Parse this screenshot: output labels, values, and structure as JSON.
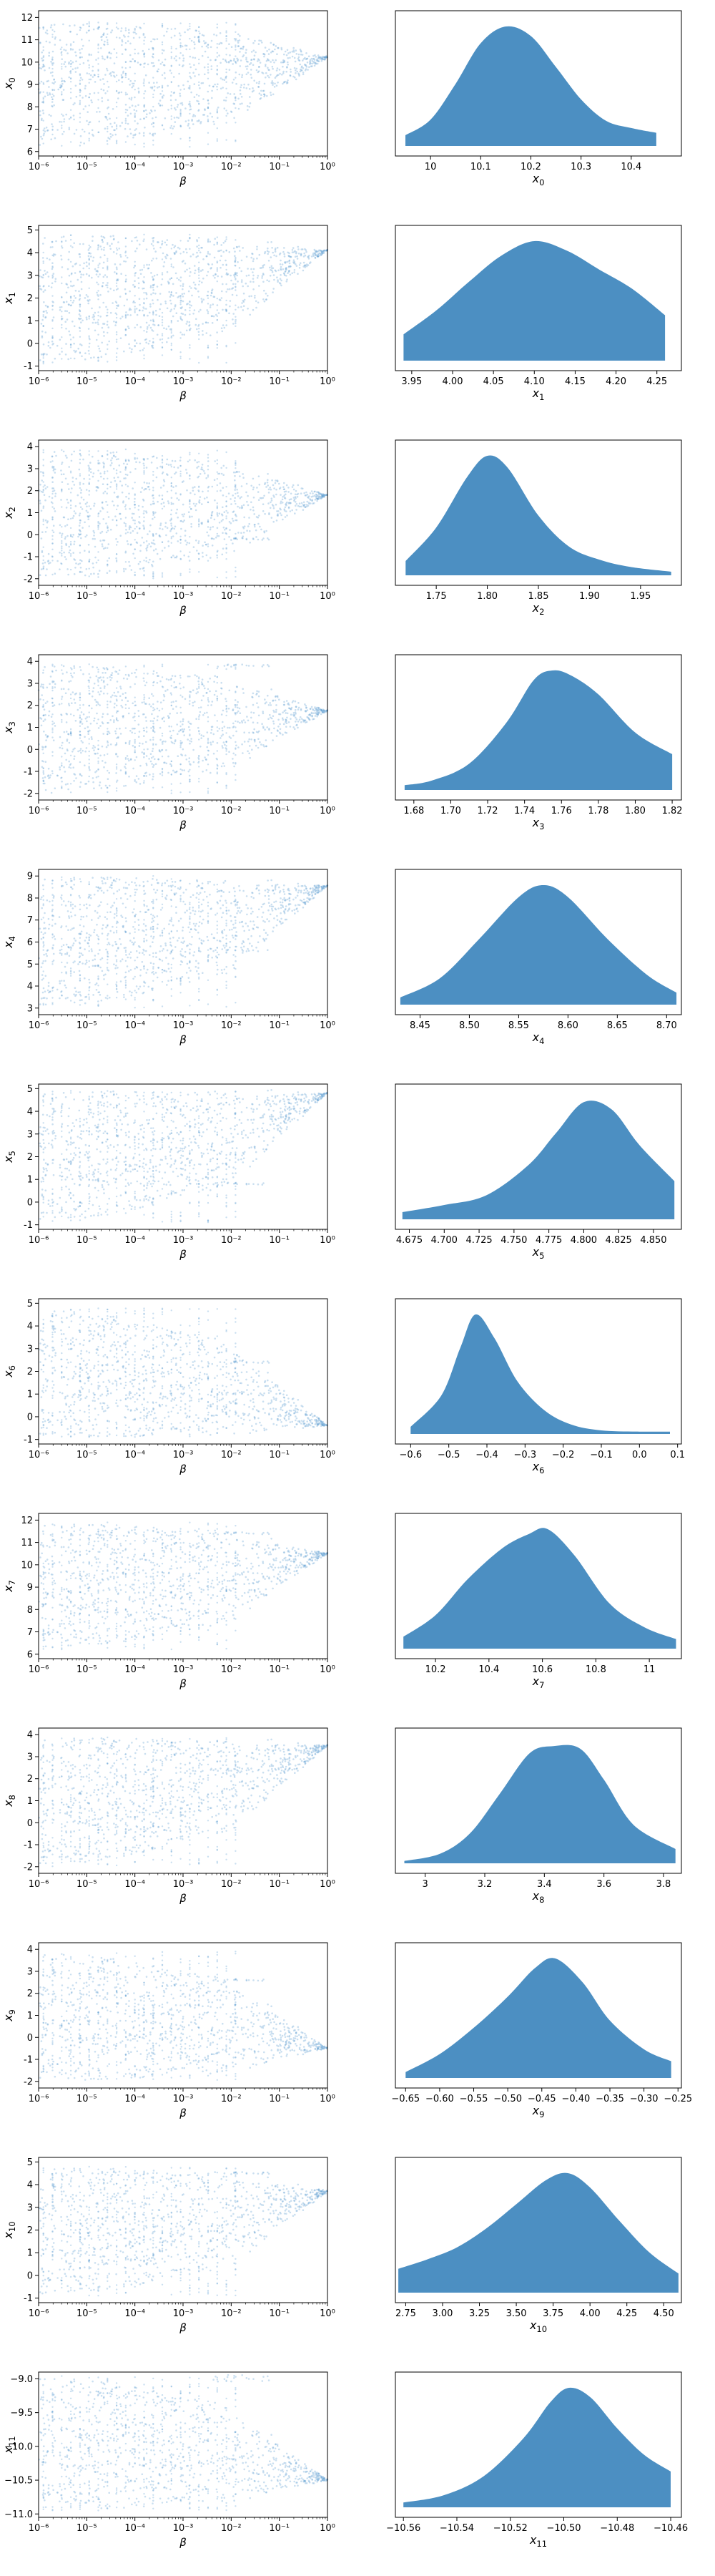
{
  "colors": {
    "fill": "#4c8fc2",
    "points": "#5a9bd0",
    "axes": "#000000"
  },
  "chart_data": [
    {
      "type": "scatter",
      "xlabel": "β",
      "ylabel": "x_0",
      "xscale": "log",
      "xlim": [
        1e-06,
        1
      ],
      "ylim": [
        5.8,
        12.3
      ],
      "yticks": [
        6,
        7,
        8,
        9,
        10,
        11,
        12
      ],
      "xticks": [
        1e-06,
        1e-05,
        0.0001,
        0.001,
        0.01,
        0.1,
        1
      ],
      "xtick_labels": [
        "10⁻⁶",
        "10⁻⁵",
        "10⁻⁴",
        "10⁻³",
        "10⁻²",
        "10⁻¹",
        "10⁰"
      ],
      "range": [
        6.2,
        11.8
      ],
      "final": 10.2,
      "streaks": [
        10.1
      ],
      "noise": 0.25,
      "grid": false
    },
    {
      "type": "area",
      "xlabel": "x_0",
      "xlim": [
        9.93,
        10.5
      ],
      "xticks": [
        10.0,
        10.1,
        10.2,
        10.3,
        10.4
      ],
      "x": [
        9.95,
        10.0,
        10.05,
        10.1,
        10.15,
        10.2,
        10.25,
        10.3,
        10.35,
        10.4,
        10.45
      ],
      "values": [
        0.09,
        0.22,
        0.52,
        0.86,
        1.0,
        0.92,
        0.66,
        0.39,
        0.21,
        0.15,
        0.11
      ],
      "grid": false
    },
    {
      "type": "scatter",
      "xlabel": "β",
      "ylabel": "x_1",
      "xscale": "log",
      "xlim": [
        1e-06,
        1
      ],
      "ylim": [
        -1.2,
        5.2
      ],
      "yticks": [
        -1,
        0,
        1,
        2,
        3,
        4,
        5
      ],
      "xticks": [
        1e-06,
        1e-05,
        0.0001,
        0.001,
        0.01,
        0.1,
        1
      ],
      "xtick_labels": [
        "10⁻⁶",
        "10⁻⁵",
        "10⁻⁴",
        "10⁻³",
        "10⁻²",
        "10⁻¹",
        "10⁰"
      ],
      "range": [
        -0.9,
        4.8
      ],
      "final": 4.1,
      "streaks": [
        3.0
      ],
      "noise": 0.2,
      "grid": false
    },
    {
      "type": "area",
      "xlabel": "x_1",
      "xlim": [
        3.93,
        4.28
      ],
      "xticks": [
        3.95,
        4.0,
        4.05,
        4.1,
        4.15,
        4.2,
        4.25
      ],
      "xtick_labels": [
        "3.95",
        "4.00",
        "4.05",
        "4.10",
        "4.15",
        "4.20",
        "4.25"
      ],
      "x": [
        3.94,
        3.98,
        4.02,
        4.06,
        4.1,
        4.14,
        4.18,
        4.22,
        4.26
      ],
      "values": [
        0.22,
        0.42,
        0.66,
        0.88,
        1.0,
        0.92,
        0.76,
        0.6,
        0.38
      ],
      "grid": false
    },
    {
      "type": "scatter",
      "xlabel": "β",
      "ylabel": "x_2",
      "xscale": "log",
      "xlim": [
        1e-06,
        1
      ],
      "ylim": [
        -2.3,
        4.3
      ],
      "yticks": [
        -2,
        -1,
        0,
        1,
        2,
        3,
        4
      ],
      "xticks": [
        1e-06,
        1e-05,
        0.0001,
        0.001,
        0.01,
        0.1,
        1
      ],
      "xtick_labels": [
        "10⁻⁶",
        "10⁻⁵",
        "10⁻⁴",
        "10⁻³",
        "10⁻²",
        "10⁻¹",
        "10⁰"
      ],
      "range": [
        -2.0,
        3.9
      ],
      "final": 1.8,
      "streaks": [
        -0.2
      ],
      "noise": 0.2,
      "grid": false
    },
    {
      "type": "area",
      "xlabel": "x_2",
      "xlim": [
        1.71,
        1.99
      ],
      "xticks": [
        1.75,
        1.8,
        1.85,
        1.9,
        1.95
      ],
      "xtick_labels": [
        "1.75",
        "1.80",
        "1.85",
        "1.90",
        "1.95"
      ],
      "x": [
        1.72,
        1.75,
        1.78,
        1.8,
        1.82,
        1.85,
        1.88,
        1.91,
        1.94,
        1.98
      ],
      "values": [
        0.12,
        0.4,
        0.82,
        1.0,
        0.9,
        0.5,
        0.24,
        0.13,
        0.07,
        0.03
      ],
      "grid": false
    },
    {
      "type": "scatter",
      "xlabel": "β",
      "ylabel": "x_3",
      "xscale": "log",
      "xlim": [
        1e-06,
        1
      ],
      "ylim": [
        -2.3,
        4.3
      ],
      "yticks": [
        -2,
        -1,
        0,
        1,
        2,
        3,
        4
      ],
      "xticks": [
        1e-06,
        1e-05,
        0.0001,
        0.001,
        0.01,
        0.1,
        1
      ],
      "xtick_labels": [
        "10⁻⁶",
        "10⁻⁵",
        "10⁻⁴",
        "10⁻³",
        "10⁻²",
        "10⁻¹",
        "10⁰"
      ],
      "range": [
        -2.0,
        3.9
      ],
      "final": 1.75,
      "streaks": [
        3.8
      ],
      "noise": 0.25,
      "grid": false
    },
    {
      "type": "area",
      "xlabel": "x_3",
      "xlim": [
        1.67,
        1.825
      ],
      "xticks": [
        1.68,
        1.7,
        1.72,
        1.74,
        1.76,
        1.78,
        1.8,
        1.82
      ],
      "xtick_labels": [
        "1.68",
        "1.70",
        "1.72",
        "1.74",
        "1.76",
        "1.78",
        "1.80",
        "1.82"
      ],
      "x": [
        1.675,
        1.69,
        1.71,
        1.73,
        1.745,
        1.755,
        1.765,
        1.78,
        1.8,
        1.82
      ],
      "values": [
        0.04,
        0.08,
        0.22,
        0.56,
        0.92,
        1.0,
        0.96,
        0.8,
        0.48,
        0.3
      ],
      "grid": false
    },
    {
      "type": "scatter",
      "xlabel": "β",
      "ylabel": "x_4",
      "xscale": "log",
      "xlim": [
        1e-06,
        1
      ],
      "ylim": [
        2.7,
        9.3
      ],
      "yticks": [
        3,
        4,
        5,
        6,
        7,
        8,
        9
      ],
      "xticks": [
        1e-06,
        1e-05,
        0.0001,
        0.001,
        0.01,
        0.1,
        1
      ],
      "xtick_labels": [
        "10⁻⁶",
        "10⁻⁵",
        "10⁻⁴",
        "10⁻³",
        "10⁻²",
        "10⁻¹",
        "10⁰"
      ],
      "range": [
        3.0,
        9.0
      ],
      "final": 8.55,
      "streaks": [
        7.8,
        5.6
      ],
      "noise": 0.2,
      "grid": false
    },
    {
      "type": "area",
      "xlabel": "x_4",
      "xlim": [
        8.425,
        8.715
      ],
      "xticks": [
        8.45,
        8.5,
        8.55,
        8.6,
        8.65,
        8.7
      ],
      "xtick_labels": [
        "8.45",
        "8.50",
        "8.55",
        "8.60",
        "8.65",
        "8.70"
      ],
      "x": [
        8.43,
        8.47,
        8.51,
        8.55,
        8.575,
        8.6,
        8.64,
        8.68,
        8.71
      ],
      "values": [
        0.06,
        0.22,
        0.55,
        0.9,
        1.0,
        0.9,
        0.55,
        0.25,
        0.1
      ],
      "grid": false
    },
    {
      "type": "scatter",
      "xlabel": "β",
      "ylabel": "x_5",
      "xscale": "log",
      "xlim": [
        1e-06,
        1
      ],
      "ylim": [
        -1.2,
        5.2
      ],
      "yticks": [
        -1,
        0,
        1,
        2,
        3,
        4,
        5
      ],
      "xticks": [
        1e-06,
        1e-05,
        0.0001,
        0.001,
        0.01,
        0.1,
        1
      ],
      "xtick_labels": [
        "10⁻⁶",
        "10⁻⁵",
        "10⁻⁴",
        "10⁻³",
        "10⁻²",
        "10⁻¹",
        "10⁰"
      ],
      "range": [
        -0.9,
        4.9
      ],
      "final": 4.8,
      "streaks": [
        0.8
      ],
      "noise": 0.25,
      "grid": false
    },
    {
      "type": "area",
      "xlabel": "x_5",
      "xlim": [
        4.665,
        4.87
      ],
      "xticks": [
        4.675,
        4.7,
        4.725,
        4.75,
        4.775,
        4.8,
        4.825,
        4.85
      ],
      "xtick_labels": [
        "4.675",
        "4.700",
        "4.725",
        "4.750",
        "4.775",
        "4.800",
        "4.825",
        "4.850"
      ],
      "x": [
        4.67,
        4.7,
        4.73,
        4.76,
        4.78,
        4.8,
        4.82,
        4.84,
        4.865
      ],
      "values": [
        0.06,
        0.12,
        0.2,
        0.45,
        0.72,
        0.98,
        0.92,
        0.62,
        0.32
      ],
      "grid": false
    },
    {
      "type": "scatter",
      "xlabel": "β",
      "ylabel": "x_6",
      "xscale": "log",
      "xlim": [
        1e-06,
        1
      ],
      "ylim": [
        -1.2,
        5.2
      ],
      "yticks": [
        -1,
        0,
        1,
        2,
        3,
        4,
        5
      ],
      "xticks": [
        1e-06,
        1e-05,
        0.0001,
        0.001,
        0.01,
        0.1,
        1
      ],
      "xtick_labels": [
        "10⁻⁶",
        "10⁻⁵",
        "10⁻⁴",
        "10⁻³",
        "10⁻²",
        "10⁻¹",
        "10⁰"
      ],
      "range": [
        -0.9,
        4.8
      ],
      "final": -0.4,
      "streaks": [
        2.4
      ],
      "noise": 0.3,
      "grid": false
    },
    {
      "type": "area",
      "xlabel": "x_6",
      "xlim": [
        -0.64,
        0.11
      ],
      "xticks": [
        -0.6,
        -0.5,
        -0.4,
        -0.3,
        -0.2,
        -0.1,
        0.0,
        0.1
      ],
      "xtick_labels": [
        "−0.6",
        "−0.5",
        "−0.4",
        "−0.3",
        "−0.2",
        "−0.1",
        "0.0",
        "0.1"
      ],
      "x": [
        -0.6,
        -0.52,
        -0.47,
        -0.43,
        -0.38,
        -0.32,
        -0.25,
        -0.18,
        -0.1,
        0.0,
        0.08
      ],
      "values": [
        0.06,
        0.32,
        0.72,
        1.0,
        0.8,
        0.44,
        0.2,
        0.08,
        0.03,
        0.02,
        0.02
      ],
      "grid": false
    },
    {
      "type": "scatter",
      "xlabel": "β",
      "ylabel": "x_7",
      "xscale": "log",
      "xlim": [
        1e-06,
        1
      ],
      "ylim": [
        5.8,
        12.3
      ],
      "yticks": [
        6,
        7,
        8,
        9,
        10,
        11,
        12
      ],
      "xticks": [
        1e-06,
        1e-05,
        0.0001,
        0.001,
        0.01,
        0.1,
        1
      ],
      "xtick_labels": [
        "10⁻⁶",
        "10⁻⁵",
        "10⁻⁴",
        "10⁻³",
        "10⁻²",
        "10⁻¹",
        "10⁰"
      ],
      "range": [
        6.2,
        11.9
      ],
      "final": 10.5,
      "streaks": [
        11.4
      ],
      "noise": 0.25,
      "grid": false
    },
    {
      "type": "area",
      "xlabel": "x_7",
      "xlim": [
        10.05,
        11.12
      ],
      "xticks": [
        10.2,
        10.4,
        10.6,
        10.8,
        11.0
      ],
      "x": [
        10.08,
        10.2,
        10.32,
        10.45,
        10.55,
        10.62,
        10.72,
        10.85,
        10.98,
        11.1
      ],
      "values": [
        0.1,
        0.28,
        0.58,
        0.84,
        0.96,
        1.0,
        0.78,
        0.38,
        0.18,
        0.08
      ],
      "grid": false
    },
    {
      "type": "scatter",
      "xlabel": "β",
      "ylabel": "x_8",
      "xscale": "log",
      "xlim": [
        1e-06,
        1
      ],
      "ylim": [
        -2.3,
        4.3
      ],
      "yticks": [
        -2,
        -1,
        0,
        1,
        2,
        3,
        4
      ],
      "xticks": [
        1e-06,
        1e-05,
        0.0001,
        0.001,
        0.01,
        0.1,
        1
      ],
      "xtick_labels": [
        "10⁻⁶",
        "10⁻⁵",
        "10⁻⁴",
        "10⁻³",
        "10⁻²",
        "10⁻¹",
        "10⁰"
      ],
      "range": [
        -2.0,
        3.9
      ],
      "final": 3.5,
      "streaks": [
        2.4
      ],
      "noise": 0.3,
      "grid": false
    },
    {
      "type": "area",
      "xlabel": "x_8",
      "xlim": [
        2.9,
        3.86
      ],
      "xticks": [
        3.0,
        3.2,
        3.4,
        3.6,
        3.8
      ],
      "x": [
        2.93,
        3.05,
        3.15,
        3.25,
        3.35,
        3.43,
        3.52,
        3.6,
        3.7,
        3.84
      ],
      "values": [
        0.02,
        0.08,
        0.25,
        0.58,
        0.92,
        0.98,
        0.96,
        0.7,
        0.32,
        0.12
      ],
      "grid": false
    },
    {
      "type": "scatter",
      "xlabel": "β",
      "ylabel": "x_9",
      "xscale": "log",
      "xlim": [
        1e-06,
        1
      ],
      "ylim": [
        -2.3,
        4.3
      ],
      "yticks": [
        -2,
        -1,
        0,
        1,
        2,
        3,
        4
      ],
      "xticks": [
        1e-06,
        1e-05,
        0.0001,
        0.001,
        0.01,
        0.1,
        1
      ],
      "xtick_labels": [
        "10⁻⁶",
        "10⁻⁵",
        "10⁻⁴",
        "10⁻³",
        "10⁻²",
        "10⁻¹",
        "10⁰"
      ],
      "range": [
        -2.0,
        3.9
      ],
      "final": -0.5,
      "streaks": [
        2.6
      ],
      "noise": 0.3,
      "grid": false
    },
    {
      "type": "area",
      "xlabel": "x_9",
      "xlim": [
        -0.665,
        -0.245
      ],
      "xticks": [
        -0.65,
        -0.6,
        -0.55,
        -0.5,
        -0.45,
        -0.4,
        -0.35,
        -0.3,
        -0.25
      ],
      "xtick_labels": [
        "−0.65",
        "−0.60",
        "−0.55",
        "−0.50",
        "−0.45",
        "−0.40",
        "−0.35",
        "−0.30",
        "−0.25"
      ],
      "x": [
        -0.65,
        -0.6,
        -0.55,
        -0.5,
        -0.46,
        -0.43,
        -0.39,
        -0.35,
        -0.3,
        -0.26
      ],
      "values": [
        0.05,
        0.2,
        0.42,
        0.68,
        0.92,
        1.0,
        0.8,
        0.48,
        0.24,
        0.14
      ],
      "grid": false
    },
    {
      "type": "scatter",
      "xlabel": "β",
      "ylabel": "x_10",
      "xscale": "log",
      "xlim": [
        1e-06,
        1
      ],
      "ylim": [
        -1.2,
        5.2
      ],
      "yticks": [
        -1,
        0,
        1,
        2,
        3,
        4,
        5
      ],
      "xticks": [
        1e-06,
        1e-05,
        0.0001,
        0.001,
        0.01,
        0.1,
        1
      ],
      "xtick_labels": [
        "10⁻⁶",
        "10⁻⁵",
        "10⁻⁴",
        "10⁻³",
        "10⁻²",
        "10⁻¹",
        "10⁰"
      ],
      "range": [
        -0.9,
        4.8
      ],
      "final": 3.7,
      "streaks": [
        4.5
      ],
      "noise": 0.45,
      "grid": false
    },
    {
      "type": "area",
      "xlabel": "x_10",
      "xlim": [
        2.68,
        4.62
      ],
      "xticks": [
        2.75,
        3.0,
        3.25,
        3.5,
        3.75,
        4.0,
        4.25,
        4.5
      ],
      "xtick_labels": [
        "2.75",
        "3.00",
        "3.25",
        "3.50",
        "3.75",
        "4.00",
        "4.25",
        "4.50"
      ],
      "x": [
        2.7,
        2.9,
        3.1,
        3.3,
        3.5,
        3.7,
        3.85,
        4.0,
        4.2,
        4.4,
        4.6
      ],
      "values": [
        0.2,
        0.28,
        0.38,
        0.54,
        0.74,
        0.94,
        1.0,
        0.88,
        0.6,
        0.34,
        0.16
      ],
      "grid": false
    },
    {
      "type": "scatter",
      "xlabel": "β",
      "ylabel": "x_11",
      "xscale": "log",
      "xlim": [
        1e-06,
        1
      ],
      "ylim": [
        -11.05,
        -8.9
      ],
      "yticks": [
        -11.0,
        -10.5,
        -10.0,
        -9.5,
        -9.0
      ],
      "ytick_labels": [
        "−11.0",
        "−10.5",
        "−10.0",
        "−9.5",
        "−9.0"
      ],
      "xticks": [
        1e-06,
        1e-05,
        0.0001,
        0.001,
        0.01,
        0.1,
        1
      ],
      "xtick_labels": [
        "10⁻⁶",
        "10⁻⁵",
        "10⁻⁴",
        "10⁻³",
        "10⁻²",
        "10⁻¹",
        "10⁰"
      ],
      "range": [
        -10.95,
        -8.95
      ],
      "final": -10.5,
      "streaks": [
        -9.0
      ],
      "noise": 0.1,
      "grid": false
    },
    {
      "type": "area",
      "xlabel": "x_11",
      "xlim": [
        -10.563,
        -10.456
      ],
      "xticks": [
        -10.56,
        -10.54,
        -10.52,
        -10.5,
        -10.48,
        -10.46
      ],
      "xtick_labels": [
        "−10.56",
        "−10.54",
        "−10.52",
        "−10.50",
        "−10.48",
        "−10.46"
      ],
      "x": [
        -10.56,
        -10.545,
        -10.53,
        -10.515,
        -10.505,
        -10.498,
        -10.49,
        -10.48,
        -10.47,
        -10.46
      ],
      "values": [
        0.04,
        0.1,
        0.26,
        0.58,
        0.88,
        1.0,
        0.92,
        0.66,
        0.44,
        0.3
      ],
      "grid": false
    }
  ]
}
